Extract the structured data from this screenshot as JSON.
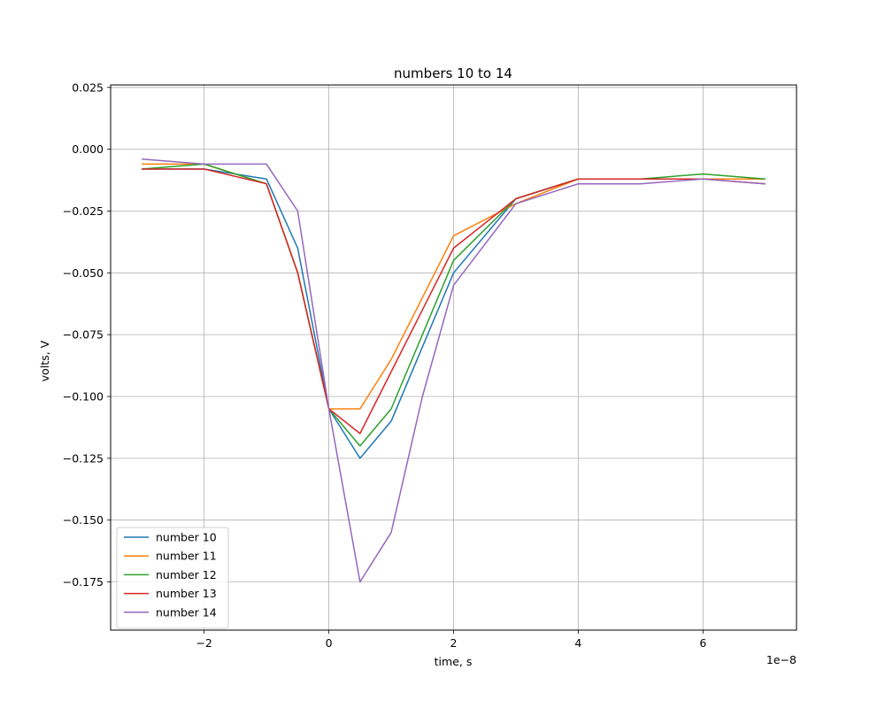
{
  "chart_data": {
    "type": "line",
    "title": "numbers 10 to 14",
    "xlabel": "time, s",
    "ylabel": "volts, V",
    "x_scale_note": "1e−8",
    "xlim": [
      -3.5e-08,
      7.5e-08
    ],
    "ylim": [
      -0.1945,
      0.026
    ],
    "x_ticks": [
      -2e-08,
      0,
      2e-08,
      4e-08,
      6e-08
    ],
    "x_tick_labels": [
      "−2",
      "0",
      "2",
      "4",
      "6"
    ],
    "y_ticks": [
      0.025,
      0.0,
      -0.025,
      -0.05,
      -0.075,
      -0.1,
      -0.125,
      -0.15,
      -0.175
    ],
    "y_tick_labels": [
      "0.025",
      "0.000",
      "−0.025",
      "−0.050",
      "−0.075",
      "−0.100",
      "−0.125",
      "−0.150",
      "−0.175"
    ],
    "grid": true,
    "legend_position": "lower-left",
    "x": [
      -3e-08,
      -2e-08,
      -1e-08,
      -5e-09,
      0,
      5e-09,
      1e-08,
      1.5e-08,
      2e-08,
      3e-08,
      4e-08,
      5e-08,
      6e-08,
      7e-08
    ],
    "series": [
      {
        "name": "number 10",
        "color": "#1f77b4",
        "values": [
          -0.008,
          -0.008,
          -0.012,
          -0.04,
          -0.105,
          -0.125,
          -0.11,
          -0.08,
          -0.05,
          -0.02,
          -0.012,
          -0.012,
          -0.012,
          -0.012
        ]
      },
      {
        "name": "number 11",
        "color": "#ff7f0e",
        "values": [
          -0.006,
          -0.006,
          -0.014,
          -0.05,
          -0.105,
          -0.105,
          -0.085,
          -0.06,
          -0.035,
          -0.022,
          -0.012,
          -0.012,
          -0.012,
          -0.012
        ]
      },
      {
        "name": "number 12",
        "color": "#2ca02c",
        "values": [
          -0.008,
          -0.006,
          -0.014,
          -0.05,
          -0.105,
          -0.12,
          -0.105,
          -0.075,
          -0.045,
          -0.02,
          -0.012,
          -0.012,
          -0.01,
          -0.012
        ]
      },
      {
        "name": "number 13",
        "color": "#d62728",
        "values": [
          -0.008,
          -0.008,
          -0.014,
          -0.05,
          -0.105,
          -0.115,
          -0.09,
          -0.065,
          -0.04,
          -0.02,
          -0.012,
          -0.012,
          -0.012,
          -0.014
        ]
      },
      {
        "name": "number 14",
        "color": "#9467bd",
        "values": [
          -0.004,
          -0.006,
          -0.006,
          -0.025,
          -0.105,
          -0.175,
          -0.155,
          -0.1,
          -0.055,
          -0.022,
          -0.014,
          -0.014,
          -0.012,
          -0.014
        ]
      }
    ]
  }
}
